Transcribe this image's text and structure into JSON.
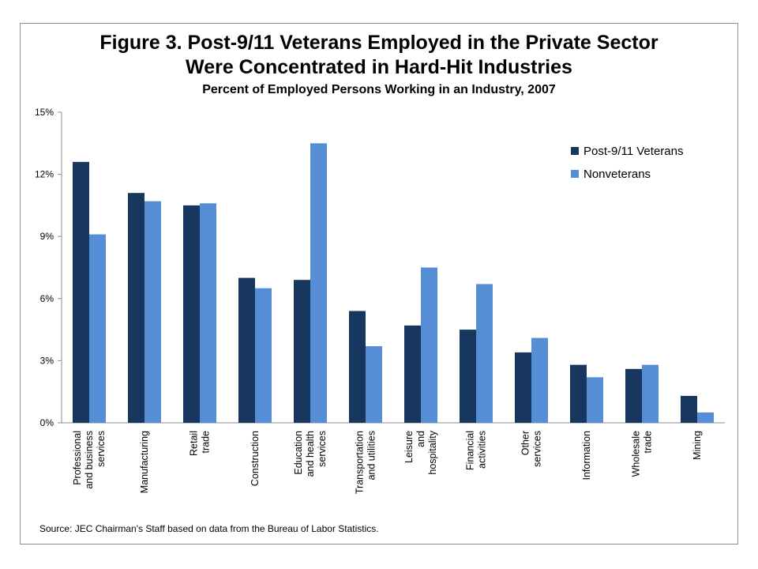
{
  "chart_data": {
    "type": "bar",
    "title_lines": [
      "Figure 3. Post-9/11 Veterans Employed in the Private Sector",
      "Were Concentrated in Hard-Hit Industries"
    ],
    "subtitle": "Percent of Employed Persons Working in an Industry, 2007",
    "xlabel": "",
    "ylabel": "",
    "ylim": [
      0,
      15
    ],
    "y_ticks": [
      {
        "value": 0,
        "label": "0%"
      },
      {
        "value": 3,
        "label": "3%"
      },
      {
        "value": 6,
        "label": "6%"
      },
      {
        "value": 9,
        "label": "9%"
      },
      {
        "value": 12,
        "label": "12%"
      },
      {
        "value": 15,
        "label": "15%"
      }
    ],
    "grid": false,
    "legend_position": "top-right",
    "categories": [
      [
        "Professional",
        "and business",
        "services"
      ],
      [
        "Manufacturing"
      ],
      [
        "Retail",
        "trade"
      ],
      [
        "Construction"
      ],
      [
        "Education",
        "and health",
        "services"
      ],
      [
        "Transportation",
        "and utilities"
      ],
      [
        "Leisure",
        "and",
        "hospitality"
      ],
      [
        "Financial",
        "activities"
      ],
      [
        "Other",
        "services"
      ],
      [
        "Information"
      ],
      [
        "Wholesale",
        "trade"
      ],
      [
        "Mining"
      ]
    ],
    "series": [
      {
        "name": "Post-9/11 Veterans",
        "color": "#17375e",
        "values": [
          12.6,
          11.1,
          10.5,
          7.0,
          6.9,
          5.4,
          4.7,
          4.5,
          3.4,
          2.8,
          2.6,
          1.3
        ]
      },
      {
        "name": "Nonveterans",
        "color": "#558ed5",
        "values": [
          9.1,
          10.7,
          10.6,
          6.5,
          13.5,
          3.7,
          7.5,
          6.7,
          4.1,
          2.2,
          2.8,
          0.5
        ]
      }
    ]
  },
  "footer": {
    "source": "Source: JEC Chairman's Staff based on data from the Bureau of Labor Statistics."
  }
}
